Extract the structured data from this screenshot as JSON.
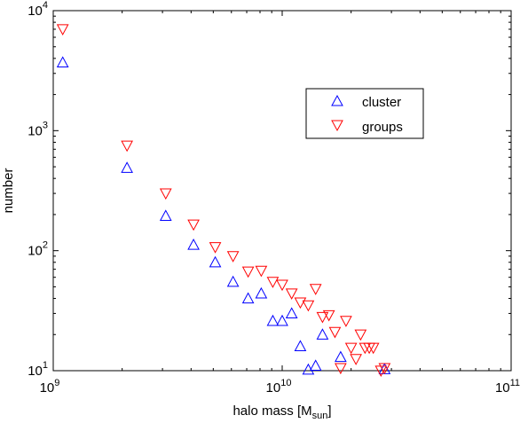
{
  "chart_data": {
    "type": "scatter",
    "xlabel": "halo mass [M",
    "xlabel_sub": "sun",
    "xlabel_close": "]",
    "ylabel": "number",
    "xscale": "log",
    "yscale": "log",
    "xlim": [
      1000000000.0,
      100000000000.0
    ],
    "ylim": [
      10,
      10000
    ],
    "grid": false,
    "legend_placement": "upper-right-inset",
    "x_ticks": [
      {
        "base": "10",
        "exp": "9"
      },
      {
        "base": "10",
        "exp": "10"
      },
      {
        "base": "10",
        "exp": "11"
      }
    ],
    "y_ticks": [
      {
        "base": "10",
        "exp": "1"
      },
      {
        "base": "10",
        "exp": "2"
      },
      {
        "base": "10",
        "exp": "3"
      },
      {
        "base": "10",
        "exp": "4"
      }
    ],
    "series": [
      {
        "name": "cluster",
        "marker": "triangle-up",
        "color": "#0000ff",
        "points": [
          [
            1100000000.0,
            3700
          ],
          [
            2100000000.0,
            490
          ],
          [
            3100000000.0,
            195
          ],
          [
            4100000000.0,
            112
          ],
          [
            5100000000.0,
            80
          ],
          [
            6100000000.0,
            55
          ],
          [
            7100000000.0,
            40
          ],
          [
            8100000000.0,
            44
          ],
          [
            9100000000.0,
            26
          ],
          [
            10000000000.0,
            26
          ],
          [
            11000000000.0,
            30
          ],
          [
            12000000000.0,
            16
          ],
          [
            13000000000.0,
            10.2
          ],
          [
            14000000000.0,
            11
          ],
          [
            15000000000.0,
            20
          ],
          [
            18000000000.0,
            13
          ],
          [
            28000000000.0,
            10.3
          ]
        ]
      },
      {
        "name": "groups",
        "marker": "triangle-down",
        "color": "#ff0000",
        "points": [
          [
            1100000000.0,
            7000
          ],
          [
            2100000000.0,
            750
          ],
          [
            3100000000.0,
            300
          ],
          [
            4100000000.0,
            165
          ],
          [
            5100000000.0,
            107
          ],
          [
            6100000000.0,
            90
          ],
          [
            7100000000.0,
            67
          ],
          [
            8100000000.0,
            68
          ],
          [
            9100000000.0,
            55
          ],
          [
            10000000000.0,
            52
          ],
          [
            11000000000.0,
            44
          ],
          [
            12000000000.0,
            37
          ],
          [
            13000000000.0,
            35
          ],
          [
            14000000000.0,
            48
          ],
          [
            15000000000.0,
            28
          ],
          [
            16000000000.0,
            29
          ],
          [
            17000000000.0,
            21
          ],
          [
            18000000000.0,
            10.5
          ],
          [
            19000000000.0,
            26
          ],
          [
            20000000000.0,
            15.5
          ],
          [
            21000000000.0,
            12.5
          ],
          [
            22000000000.0,
            20
          ],
          [
            23000000000.0,
            15.5
          ],
          [
            24000000000.0,
            15.5
          ],
          [
            25000000000.0,
            15.5
          ],
          [
            27000000000.0,
            10
          ],
          [
            28000000000.0,
            10.5
          ]
        ]
      }
    ]
  }
}
